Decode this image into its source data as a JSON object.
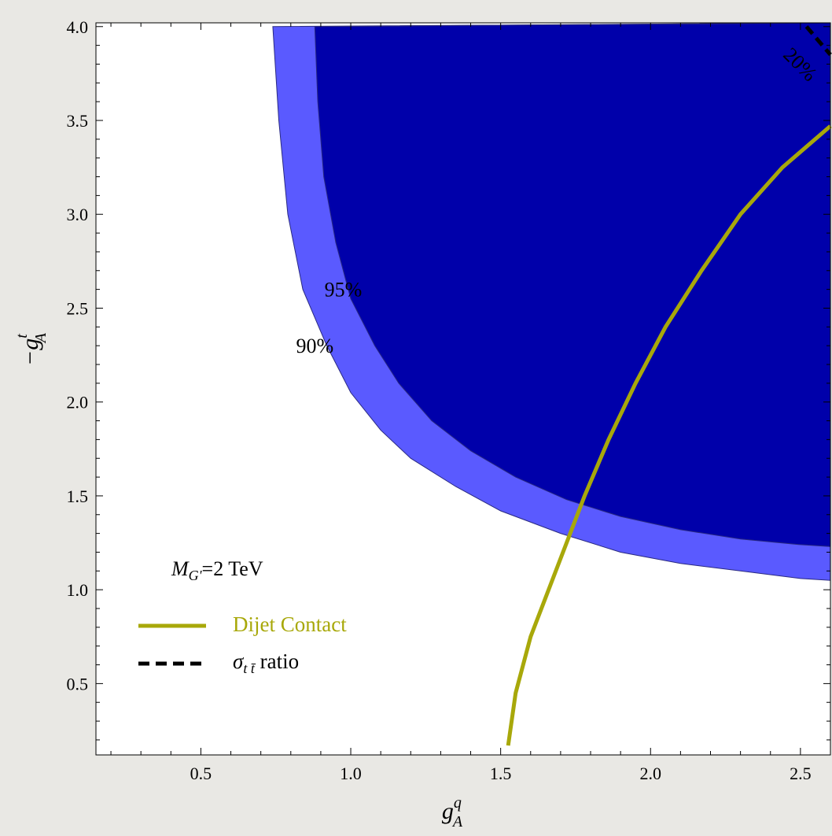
{
  "chart_data": {
    "type": "contour",
    "xlabel": "g",
    "xlabel_sup": "q",
    "xlabel_sub": "A",
    "ylabel": "−g",
    "ylabel_sup": "t",
    "ylabel_sub": "A",
    "xlim": [
      0.15,
      2.6
    ],
    "ylim": [
      0.12,
      4.02
    ],
    "x_ticks": [
      0.5,
      1.0,
      1.5,
      2.0,
      2.5
    ],
    "x_tick_labels": [
      "0.5",
      "1.0",
      "1.5",
      "2.0",
      "2.5"
    ],
    "y_ticks": [
      0.5,
      1.0,
      1.5,
      2.0,
      2.5,
      3.0,
      3.5,
      4.0
    ],
    "y_tick_labels": [
      "0.5",
      "1.0",
      "1.5",
      "2.0",
      "2.5",
      "3.0",
      "3.5",
      "4.0"
    ],
    "grid": false,
    "regions": [
      {
        "name": "90%",
        "color": "#5a5aff",
        "boundary": [
          [
            0.74,
            4.0
          ],
          [
            0.76,
            3.5
          ],
          [
            0.79,
            3.0
          ],
          [
            0.84,
            2.6
          ],
          [
            0.92,
            2.3
          ],
          [
            1.0,
            2.05
          ],
          [
            1.1,
            1.85
          ],
          [
            1.2,
            1.7
          ],
          [
            1.35,
            1.55
          ],
          [
            1.5,
            1.42
          ],
          [
            1.7,
            1.3
          ],
          [
            1.9,
            1.2
          ],
          [
            2.1,
            1.14
          ],
          [
            2.3,
            1.1
          ],
          [
            2.5,
            1.06
          ],
          [
            2.6,
            1.05
          ]
        ]
      },
      {
        "name": "95%",
        "color": "#0000aa",
        "boundary": [
          [
            0.88,
            4.0
          ],
          [
            0.89,
            3.6
          ],
          [
            0.91,
            3.2
          ],
          [
            0.95,
            2.85
          ],
          [
            1.0,
            2.55
          ],
          [
            1.08,
            2.3
          ],
          [
            1.16,
            2.1
          ],
          [
            1.27,
            1.9
          ],
          [
            1.4,
            1.74
          ],
          [
            1.55,
            1.6
          ],
          [
            1.72,
            1.48
          ],
          [
            1.9,
            1.39
          ],
          [
            2.1,
            1.32
          ],
          [
            2.3,
            1.27
          ],
          [
            2.5,
            1.24
          ],
          [
            2.6,
            1.23
          ]
        ]
      }
    ],
    "series": [
      {
        "name": "Dijet Contact",
        "color": "#a8a80a",
        "style": "solid",
        "points": [
          [
            1.525,
            0.17
          ],
          [
            1.55,
            0.45
          ],
          [
            1.6,
            0.75
          ],
          [
            1.66,
            1.0
          ],
          [
            1.72,
            1.25
          ],
          [
            1.78,
            1.5
          ],
          [
            1.86,
            1.8
          ],
          [
            1.95,
            2.1
          ],
          [
            2.05,
            2.4
          ],
          [
            2.17,
            2.7
          ],
          [
            2.3,
            3.0
          ],
          [
            2.44,
            3.25
          ],
          [
            2.6,
            3.47
          ]
        ]
      },
      {
        "name": "σ_{tt̄} ratio",
        "color": "#000000",
        "style": "dashed",
        "points": [
          [
            2.52,
            4.0
          ],
          [
            2.6,
            3.85
          ]
        ]
      }
    ],
    "contour_labels": [
      {
        "text": "95%",
        "x": 0.975,
        "y": 2.6
      },
      {
        "text": "90%",
        "x": 0.88,
        "y": 2.3
      },
      {
        "text": "20%",
        "x": 2.5,
        "y": 3.8,
        "rotate": 45
      }
    ],
    "annotation": {
      "mass_label": "M",
      "mass_sub": "G'",
      "mass_value": "=2 TeV"
    },
    "legend": [
      {
        "label": "Dijet Contact",
        "color": "#a8a80a",
        "style": "solid"
      },
      {
        "label_main": "σ",
        "label_sub": "t t̄",
        "label_rest": " ratio",
        "color": "#000000",
        "style": "dashed"
      }
    ],
    "legend_placement": "bottom-left"
  }
}
